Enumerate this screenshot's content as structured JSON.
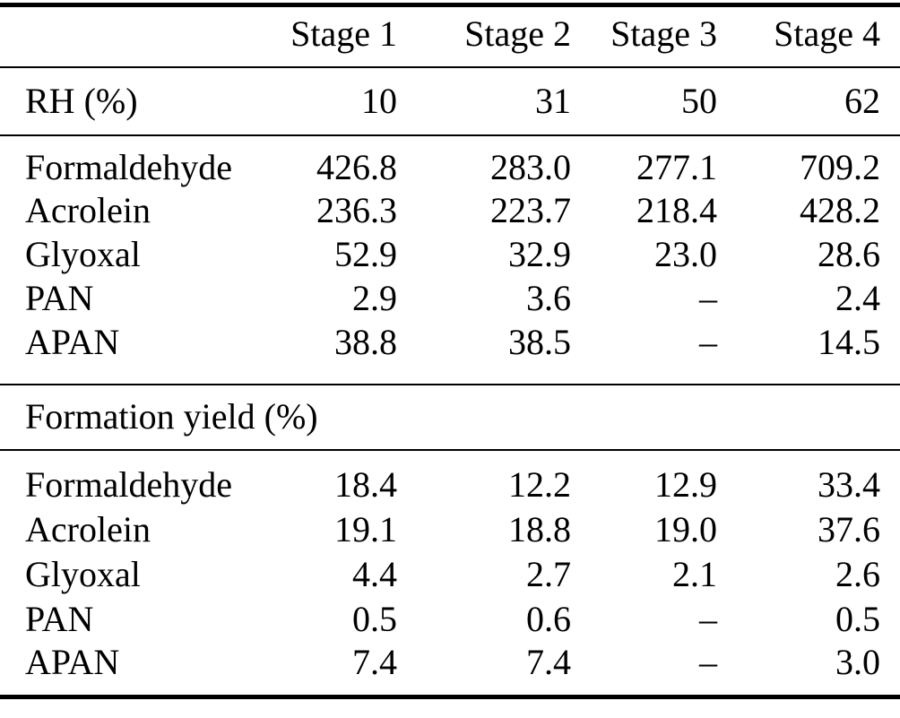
{
  "table": {
    "columns": [
      "",
      "Stage 1",
      "Stage 2",
      "Stage 3",
      "Stage 4"
    ],
    "rh_row": {
      "label": "RH (%)",
      "values": [
        "10",
        "31",
        "50",
        "62"
      ]
    },
    "concentrations": [
      {
        "label": "Formaldehyde",
        "values": [
          "426.8",
          "283.0",
          "277.1",
          "709.2"
        ]
      },
      {
        "label": "Acrolein",
        "values": [
          "236.3",
          "223.7",
          "218.4",
          "428.2"
        ]
      },
      {
        "label": "Glyoxal",
        "values": [
          "52.9",
          "32.9",
          "23.0",
          "28.6"
        ]
      },
      {
        "label": "PAN",
        "values": [
          "2.9",
          "3.6",
          "–",
          "2.4"
        ]
      },
      {
        "label": "APAN",
        "values": [
          "38.8",
          "38.5",
          "–",
          "14.5"
        ]
      }
    ],
    "yield_section_title": "Formation yield (%)",
    "yields": [
      {
        "label": "Formaldehyde",
        "values": [
          "18.4",
          "12.2",
          "12.9",
          "33.4"
        ]
      },
      {
        "label": "Acrolein",
        "values": [
          "19.1",
          "18.8",
          "19.0",
          "37.6"
        ]
      },
      {
        "label": "Glyoxal",
        "values": [
          "4.4",
          "2.7",
          "2.1",
          "2.6"
        ]
      },
      {
        "label": "PAN",
        "values": [
          "0.5",
          "0.6",
          "–",
          "0.5"
        ]
      },
      {
        "label": "APAN",
        "values": [
          "7.4",
          "7.4",
          "–",
          "3.0"
        ]
      }
    ]
  },
  "chart_data": {
    "type": "table",
    "columns": [
      "",
      "Stage 1",
      "Stage 2",
      "Stage 3",
      "Stage 4"
    ],
    "rows": [
      [
        "RH (%)",
        "10",
        "31",
        "50",
        "62"
      ],
      [
        "Formaldehyde",
        "426.8",
        "283.0",
        "277.1",
        "709.2"
      ],
      [
        "Acrolein",
        "236.3",
        "223.7",
        "218.4",
        "428.2"
      ],
      [
        "Glyoxal",
        "52.9",
        "32.9",
        "23.0",
        "28.6"
      ],
      [
        "PAN",
        "2.9",
        "3.6",
        "–",
        "2.4"
      ],
      [
        "APAN",
        "38.8",
        "38.5",
        "–",
        "14.5"
      ],
      [
        "Formation yield (%)",
        "",
        "",
        "",
        ""
      ],
      [
        "Formaldehyde",
        "18.4",
        "12.2",
        "12.9",
        "33.4"
      ],
      [
        "Acrolein",
        "19.1",
        "18.8",
        "19.0",
        "37.6"
      ],
      [
        "Glyoxal",
        "4.4",
        "2.7",
        "2.1",
        "2.6"
      ],
      [
        "PAN",
        "0.5",
        "0.6",
        "–",
        "0.5"
      ],
      [
        "APAN",
        "7.4",
        "7.4",
        "–",
        "3.0"
      ]
    ]
  }
}
